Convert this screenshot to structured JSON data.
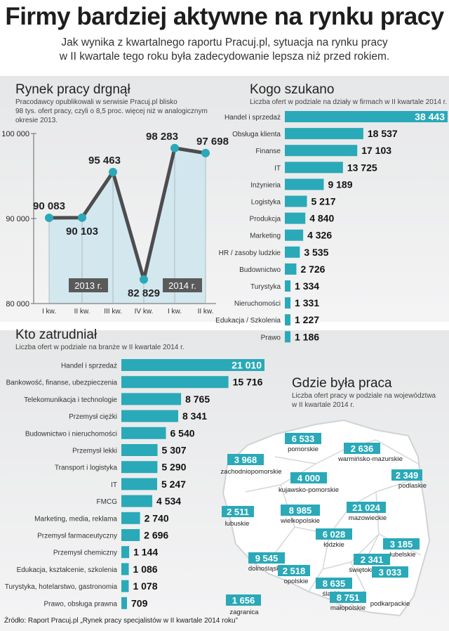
{
  "header": {
    "title": "Firmy bardziej aktywne na rynku pracy",
    "subtitle_line1": "Jak wynika z kwartalnego raportu Pracuj.pl, sytuacja na rynku pracy",
    "subtitle_line2": "w II kwartale tego roku była zadecydowanie lepsza niż przed rokiem."
  },
  "line_section": {
    "title": "Rynek pracy drgnął",
    "desc": [
      "Pracodawcy opublikowali w serwisie Pracuj.pl blisko",
      "98 tys. ofert pracy, czyli o 8,5 proc. więcej niż w analogicznym",
      "okresie 2013."
    ],
    "year_labels": [
      "2013 r.",
      "2014 r."
    ]
  },
  "departments_section": {
    "title": "Kogo szukano",
    "desc": "Liczba ofert w podziale na działy w firmach w II kwartale 2014 r."
  },
  "industries_section": {
    "title": "Kto zatrudniał",
    "desc": "Liczba ofert w podziale na branże w II kwartale 2014 r."
  },
  "map_section": {
    "title": "Gdzie była praca",
    "desc": [
      "Liczba ofert pracy w podziale na województwa",
      "w II kwartale 2014 r."
    ]
  },
  "source": "Źródło: Raport Pracuj.pl „Rynek pracy specjalistów w II kwartale 2014 roku”",
  "colors": {
    "teal": "#2aa9b8",
    "light_blue": "#cfe6ee",
    "line": "#4d4d4d",
    "dark_box": "#5a5a5a"
  },
  "chart_data": [
    {
      "type": "line",
      "x": [
        "I kw.",
        "II kw.",
        "III kw.",
        "IV kw.",
        "I kw.",
        "II kw."
      ],
      "values": [
        90083,
        90103,
        95463,
        82829,
        98283,
        97698
      ],
      "labels": [
        "90 083",
        "90 103",
        "95 463",
        "82 829",
        "98 283",
        "97 698"
      ],
      "yticks": [
        "100 000",
        "90 000",
        "80 000"
      ],
      "ylim": [
        80000,
        100000
      ]
    },
    {
      "type": "bar",
      "categories": [
        "Handel i sprzedaż",
        "Obsługa klienta",
        "Finanse",
        "IT",
        "Inżynieria",
        "Logistyka",
        "Produkcja",
        "Marketing",
        "HR / zasoby ludzkie",
        "Budownictwo",
        "Turystyka",
        "Nieruchomości",
        "Edukacja / Szkolenia",
        "Prawo"
      ],
      "values": [
        38443,
        18537,
        17103,
        13725,
        9189,
        5217,
        4840,
        4326,
        3535,
        2726,
        1334,
        1331,
        1227,
        1186
      ],
      "labels": [
        "38 443",
        "18 537",
        "17 103",
        "13 725",
        "9 189",
        "5 217",
        "4 840",
        "4 326",
        "3 535",
        "2 726",
        "1 334",
        "1 331",
        "1 227",
        "1 186"
      ]
    },
    {
      "type": "bar",
      "categories": [
        "Handel i sprzedaż",
        "Bankowość, finanse, ubezpieczenia",
        "Telekomunikacja i technologie",
        "Przemysł ciężki",
        "Budownictwo i nieruchomości",
        "Przemysł lekki",
        "Transport i logistyka",
        "IT",
        "FMCG",
        "Marketing, media, reklama",
        "Przemysł farmaceutyczny",
        "Przemysł chemiczny",
        "Edukacja, kształcenie, szkolenia",
        "Turystyka, hotelarstwo, gastronomia",
        "Prawo, obsługa prawna"
      ],
      "values": [
        21010,
        15716,
        8765,
        8341,
        6540,
        5307,
        5290,
        5247,
        4534,
        2740,
        2696,
        1144,
        1086,
        1078,
        709
      ],
      "labels": [
        "21 010",
        "15 716",
        "8 765",
        "8 341",
        "6 540",
        "5 307",
        "5 290",
        "5 247",
        "4 534",
        "2 740",
        "2 696",
        "1 144",
        "1 086",
        "1 078",
        "709"
      ]
    },
    {
      "type": "table",
      "regions": [
        {
          "name": "pomorskie",
          "value": "6 533"
        },
        {
          "name": "warmińsko-mazurskie",
          "value": "2 636"
        },
        {
          "name": "zachodniopomorskie",
          "value": "3 968"
        },
        {
          "name": "kujawsko-pomorskie",
          "value": "4 000"
        },
        {
          "name": "podlaskie",
          "value": "2 349"
        },
        {
          "name": "mazowieckie",
          "value": "21 024"
        },
        {
          "name": "lubuskie",
          "value": "2 511"
        },
        {
          "name": "wielkopolskie",
          "value": "8 985"
        },
        {
          "name": "łódzkie",
          "value": "6 028"
        },
        {
          "name": "lubelskie",
          "value": "3 185"
        },
        {
          "name": "dolnośląskie",
          "value": "9 545"
        },
        {
          "name": "opolskie",
          "value": "2 518"
        },
        {
          "name": "świętokrzyskie",
          "value": "2 341"
        },
        {
          "name": "śląskie",
          "value": "8 635"
        },
        {
          "name": "małopolskie",
          "value": "8 751"
        },
        {
          "name": "podkarpackie",
          "value": "3 033"
        },
        {
          "name": "zagranica",
          "value": "1 656"
        }
      ]
    }
  ]
}
